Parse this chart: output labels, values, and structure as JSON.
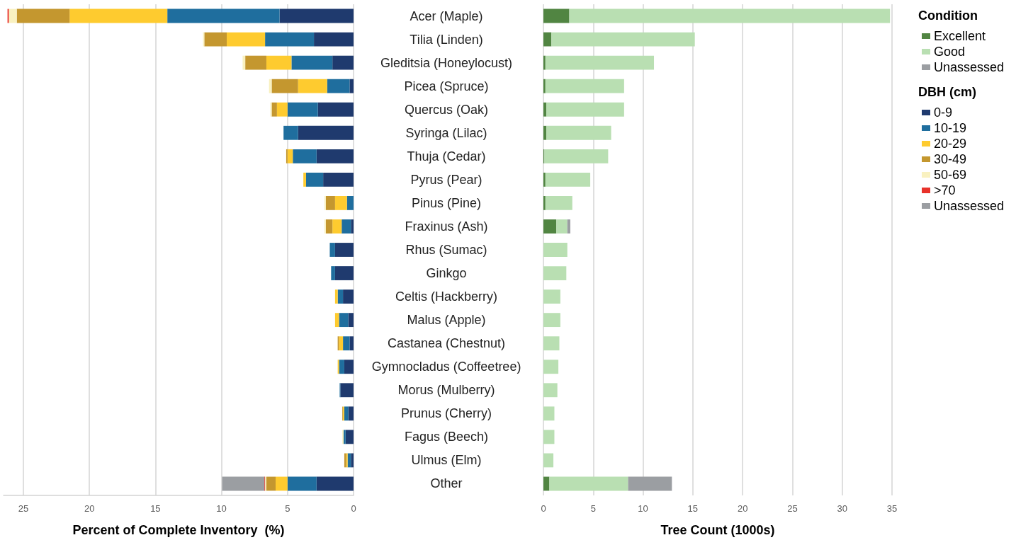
{
  "chart_data": [
    {
      "type": "bar",
      "orientation": "horizontal",
      "stacked": true,
      "xlabel": "Percent of Complete Inventory  (%)",
      "legend_title": "DBH (cm)",
      "legend": "right",
      "grid": "x",
      "categories": [
        "Acer (Maple)",
        "Tilia (Linden)",
        "Gleditsia (Honeylocust)",
        "Picea (Spruce)",
        "Quercus (Oak)",
        "Syringa (Lilac)",
        "Thuja (Cedar)",
        "Pyrus (Pear)",
        "Pinus (Pine)",
        "Fraxinus (Ash)",
        "Rhus (Sumac)",
        "Ginkgo",
        "Celtis (Hackberry)",
        "Malus (Apple)",
        "Castanea (Chestnut)",
        "Gymnocladus (Coffeetree)",
        "Morus (Mulberry)",
        "Prunus (Cherry)",
        "Fagus (Beech)",
        "Ulmus (Elm)",
        "Other"
      ],
      "xlim": [
        26.5,
        0
      ],
      "xticks": [
        25,
        20,
        15,
        10,
        5,
        0
      ],
      "series": [
        {
          "name": "0-9",
          "color": "#1f3a6e",
          "values": [
            5.6,
            3.0,
            1.6,
            0.3,
            2.7,
            4.2,
            2.8,
            2.3,
            null,
            0.2,
            1.4,
            1.4,
            0.8,
            0.4,
            0.3,
            0.7,
            1.0,
            0.4,
            0.6,
            0.2,
            2.8
          ]
        },
        {
          "name": "10-19",
          "color": "#1f6e9e",
          "values": [
            8.5,
            3.7,
            3.1,
            1.7,
            2.3,
            1.1,
            1.8,
            1.3,
            0.5,
            0.7,
            0.4,
            0.3,
            0.4,
            0.7,
            0.5,
            0.4,
            0.05,
            0.3,
            0.15,
            0.25,
            2.2
          ]
        },
        {
          "name": "20-29",
          "color": "#fecb2f",
          "values": [
            7.4,
            2.9,
            1.9,
            2.2,
            0.8,
            null,
            0.4,
            0.2,
            0.9,
            0.7,
            null,
            null,
            0.2,
            0.3,
            0.3,
            0.1,
            null,
            0.1,
            null,
            0.1,
            0.9
          ]
        },
        {
          "name": "30-49",
          "color": "#c4972f",
          "values": [
            4.0,
            1.7,
            1.6,
            2.0,
            0.4,
            null,
            0.1,
            null,
            0.7,
            0.5,
            null,
            null,
            null,
            null,
            0.1,
            null,
            null,
            0.05,
            null,
            0.15,
            0.7
          ]
        },
        {
          "name": "50-69",
          "color": "#f9f1c0",
          "values": [
            0.6,
            0.1,
            0.2,
            0.2,
            0.1,
            null,
            null,
            null,
            0.1,
            0.1,
            null,
            null,
            null,
            null,
            null,
            null,
            null,
            null,
            0.1,
            null,
            0.1
          ]
        },
        {
          "name": ">70",
          "color": "#e8322a",
          "values": [
            0.1,
            null,
            null,
            null,
            null,
            null,
            null,
            null,
            null,
            null,
            null,
            null,
            null,
            null,
            null,
            null,
            null,
            null,
            null,
            null,
            0.05
          ]
        },
        {
          "name": "Unassessed",
          "color": "#9b9ea2",
          "values": [
            null,
            null,
            null,
            null,
            null,
            null,
            null,
            null,
            null,
            null,
            null,
            null,
            null,
            null,
            null,
            null,
            null,
            null,
            null,
            null,
            3.2
          ]
        }
      ]
    },
    {
      "type": "bar",
      "orientation": "horizontal",
      "stacked": true,
      "xlabel": "Tree Count (1000s)",
      "legend_title": "Condition",
      "legend": "right",
      "grid": "x",
      "categories": [
        null,
        null,
        null,
        null,
        null,
        null,
        null,
        null,
        null,
        null,
        null,
        null,
        null,
        null,
        null,
        null,
        null,
        null,
        null,
        null,
        null
      ],
      "xlim": [
        0,
        35
      ],
      "xticks": [
        0,
        5,
        10,
        15,
        20,
        25,
        30,
        35
      ],
      "series": [
        {
          "name": "Excellent",
          "color": "#518542",
          "values": [
            2.6,
            0.8,
            0.2,
            0.2,
            0.3,
            0.3,
            0.1,
            0.2,
            0.2,
            1.3,
            null,
            null,
            null,
            null,
            null,
            null,
            null,
            null,
            null,
            null,
            0.6
          ]
        },
        {
          "name": "Good",
          "color": "#b9dfb2",
          "values": [
            32.2,
            14.4,
            10.9,
            7.9,
            7.8,
            6.5,
            6.4,
            4.5,
            2.7,
            1.1,
            2.4,
            2.3,
            1.7,
            1.7,
            1.6,
            1.5,
            1.4,
            1.1,
            1.1,
            1.0,
            7.9
          ]
        },
        {
          "name": "Unassessed",
          "color": "#9b9ea2",
          "values": [
            null,
            null,
            null,
            null,
            null,
            null,
            null,
            null,
            null,
            0.3,
            null,
            null,
            null,
            null,
            null,
            null,
            null,
            null,
            null,
            null,
            4.4
          ]
        }
      ]
    }
  ]
}
